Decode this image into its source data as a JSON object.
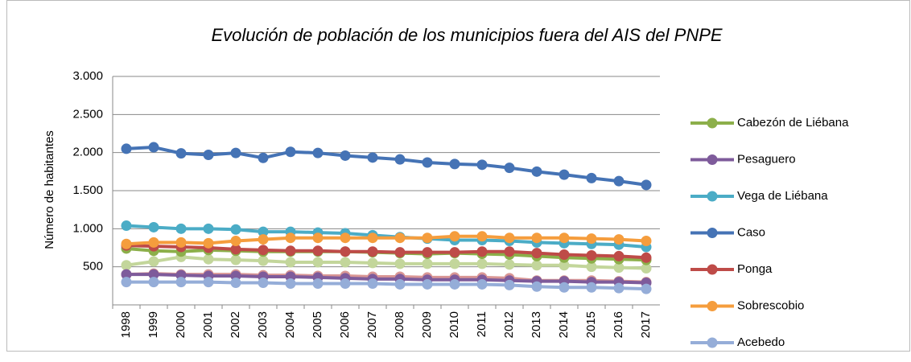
{
  "chart_data": {
    "type": "line",
    "title": "Evolución de población de los municipios fuera del AIS del PNPE",
    "y_label": "Número de habitantes",
    "categories": [
      "1998",
      "1999",
      "2000",
      "2001",
      "2002",
      "2003",
      "2004",
      "2005",
      "2006",
      "2007",
      "2008",
      "2009",
      "2010",
      "2011",
      "2012",
      "2013",
      "2014",
      "2015",
      "2016",
      "2017"
    ],
    "ylim": [
      0,
      3000
    ],
    "yticks": [
      500,
      {
        "value": 1000,
        "label": "1.000"
      },
      {
        "value": 1500,
        "label": "1.500"
      },
      {
        "value": 2000,
        "label": "2.000"
      },
      {
        "value": 2500,
        "label": "2.500"
      },
      {
        "value": 3000,
        "label": "3.000"
      }
    ],
    "grid": true,
    "legend": "right",
    "series": [
      {
        "color": "#c3d69b",
        "values": [
          520,
          570,
          630,
          600,
          590,
          580,
          560,
          560,
          560,
          550,
          540,
          540,
          540,
          540,
          530,
          520,
          520,
          500,
          490,
          480
        ]
      },
      {
        "color": "#d99694",
        "values": [
          400,
          410,
          400,
          400,
          400,
          390,
          390,
          380,
          380,
          370,
          370,
          360,
          360,
          360,
          350,
          320,
          320,
          320,
          310,
          300
        ]
      },
      {
        "name": "Cabezón de Liébana",
        "color": "#8caf4a",
        "values": [
          740,
          710,
          700,
          720,
          710,
          700,
          700,
          700,
          700,
          690,
          680,
          670,
          680,
          670,
          660,
          640,
          620,
          610,
          600,
          590
        ]
      },
      {
        "name": "Pesaguero",
        "color": "#7e5b9b",
        "values": [
          400,
          400,
          390,
          380,
          380,
          370,
          370,
          360,
          350,
          340,
          340,
          330,
          330,
          330,
          320,
          310,
          310,
          300,
          300,
          290
        ]
      },
      {
        "name": "Vega de Liébana",
        "color": "#4bacc6",
        "values": [
          1040,
          1020,
          1000,
          1000,
          990,
          960,
          960,
          950,
          940,
          915,
          890,
          870,
          850,
          850,
          840,
          820,
          810,
          800,
          790,
          760
        ]
      },
      {
        "name": "Caso",
        "color": "#4573b5",
        "values": [
          2050,
          2070,
          1990,
          1970,
          1995,
          1930,
          2010,
          1995,
          1960,
          1935,
          1910,
          1870,
          1850,
          1840,
          1800,
          1750,
          1710,
          1665,
          1625,
          1575
        ]
      },
      {
        "name": "Ponga",
        "color": "#be4b48",
        "values": [
          780,
          770,
          760,
          750,
          730,
          720,
          710,
          710,
          700,
          700,
          690,
          690,
          690,
          700,
          700,
          680,
          660,
          650,
          640,
          620
        ]
      },
      {
        "name": "Sobrescobio",
        "color": "#f59d3d",
        "values": [
          800,
          820,
          820,
          810,
          840,
          860,
          880,
          880,
          880,
          880,
          880,
          880,
          900,
          900,
          880,
          880,
          880,
          870,
          860,
          840
        ]
      },
      {
        "name": "Acebedo",
        "color": "#95add8",
        "values": [
          300,
          300,
          300,
          300,
          290,
          290,
          280,
          280,
          280,
          280,
          270,
          270,
          270,
          270,
          260,
          240,
          230,
          230,
          220,
          210
        ]
      }
    ]
  }
}
